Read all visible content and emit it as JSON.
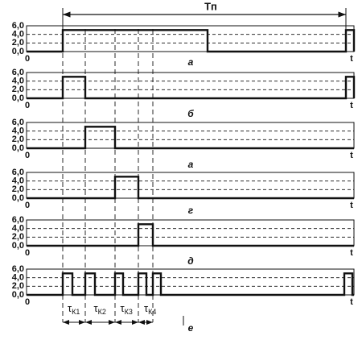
{
  "period_label": "Tп",
  "panels": [
    {
      "yticks": [
        "6,0",
        "4,0",
        "2,0",
        "0,0"
      ],
      "origin": "0",
      "end": "t",
      "letter": "а"
    },
    {
      "yticks": [
        "6,0",
        "4,0",
        "2,0",
        "0,0"
      ],
      "origin": "0",
      "end": "t",
      "letter": "б"
    },
    {
      "yticks": [
        "6,0",
        "4,0",
        "2,0",
        "0,0"
      ],
      "origin": "0",
      "end": "t",
      "letter": "а"
    },
    {
      "yticks": [
        "6,0",
        "4,0",
        "2,0",
        "0,0"
      ],
      "origin": "0",
      "end": "t",
      "letter": "г"
    },
    {
      "yticks": [
        "6,0",
        "4,0",
        "2,0",
        "0,0"
      ],
      "origin": "0",
      "end": "t",
      "letter": "д"
    },
    {
      "yticks": [
        "6,0",
        "4,0",
        "2,0",
        "0,0"
      ],
      "origin": "0",
      "end": "t",
      "letter": "е"
    }
  ],
  "durations": [
    {
      "symbol": "τ",
      "sub": "К1"
    },
    {
      "symbol": "τ",
      "sub": "К2"
    },
    {
      "symbol": "τ",
      "sub": "К3"
    },
    {
      "symbol": "τ",
      "sub": "К4"
    }
  ]
}
